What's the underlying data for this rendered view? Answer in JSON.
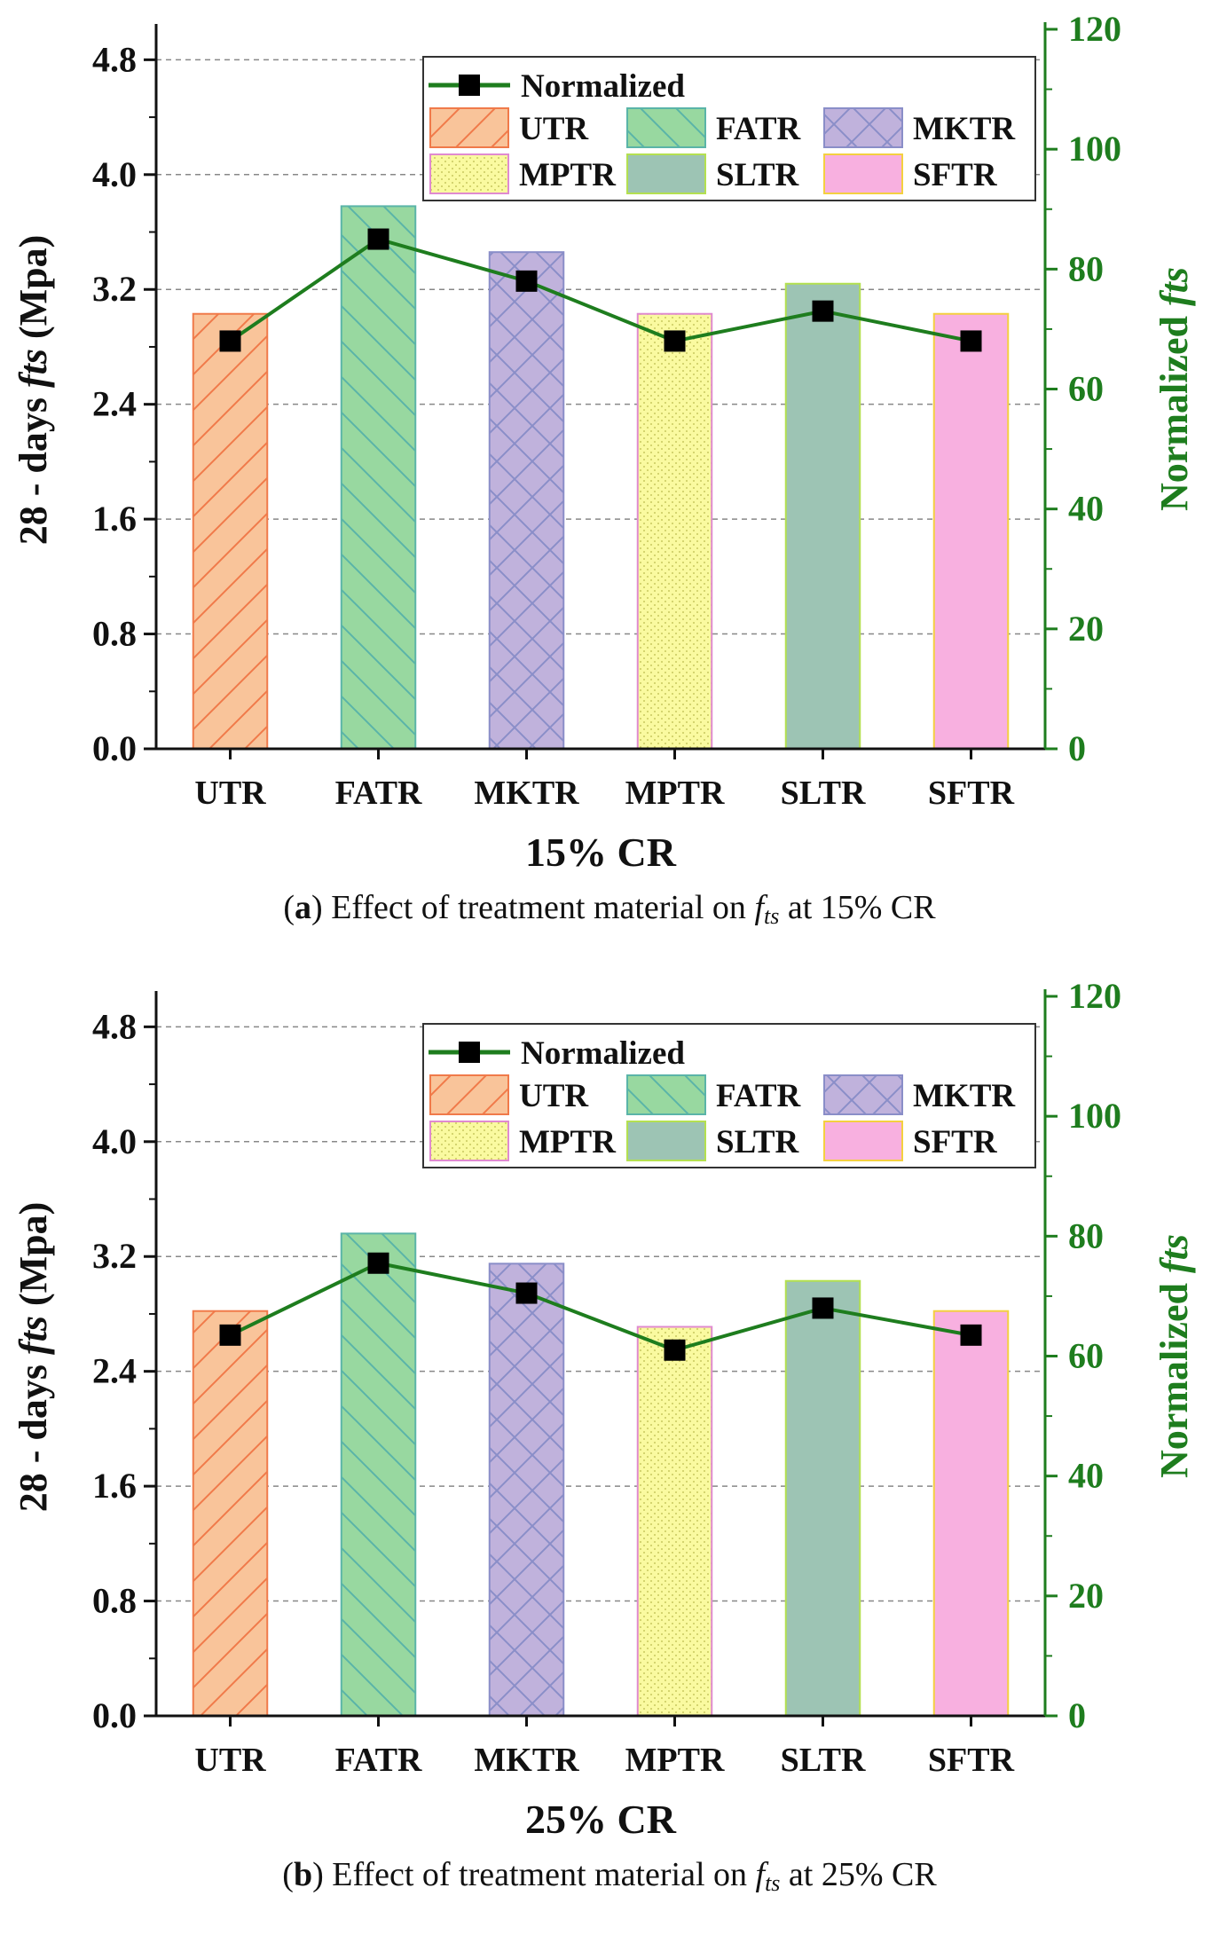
{
  "chart_data": [
    {
      "type": "bar",
      "panel": "a",
      "categories": [
        "UTR",
        "FATR",
        "MKTR",
        "MPTR",
        "SLTR",
        "SFTR"
      ],
      "series": [
        {
          "name": "28 - days fts (Mpa)",
          "axis": "left",
          "values": [
            3.03,
            3.78,
            3.46,
            3.03,
            3.24,
            3.03
          ]
        },
        {
          "name": "Normalized",
          "axis": "right",
          "type": "line",
          "values": [
            68,
            85,
            78,
            68,
            73,
            68
          ]
        }
      ],
      "xlabel": "15% CR",
      "ylabel_prefix": "28 - days ",
      "ylabel_ital": "fts",
      "ylabel_suffix": " (Mpa)",
      "y2label_prefix": "Normalized  ",
      "y2label_ital": "fts",
      "ylim": [
        0,
        5.0
      ],
      "y2lim": [
        0,
        120
      ],
      "yticks": [
        "0.0",
        "0.8",
        "1.6",
        "2.4",
        "3.2",
        "4.0",
        "4.8"
      ],
      "y2ticks": [
        "0",
        "20",
        "40",
        "60",
        "80",
        "100",
        "120"
      ],
      "grid": true,
      "legend_position": "top-right",
      "caption": {
        "label": "a",
        "text_before": "Effect of treatment material on ",
        "symbol": "f",
        "subscript": "ts",
        "text_after": " at 15% CR"
      }
    },
    {
      "type": "bar",
      "panel": "b",
      "categories": [
        "UTR",
        "FATR",
        "MKTR",
        "MPTR",
        "SLTR",
        "SFTR"
      ],
      "series": [
        {
          "name": "28 - days fts (Mpa)",
          "axis": "left",
          "values": [
            2.82,
            3.36,
            3.15,
            2.71,
            3.03,
            2.82
          ]
        },
        {
          "name": "Normalized",
          "axis": "right",
          "type": "line",
          "values": [
            63.5,
            75.5,
            70.5,
            61,
            68,
            63.5
          ]
        }
      ],
      "xlabel": "25% CR",
      "ylabel_prefix": "28 - days ",
      "ylabel_ital": "fts",
      "ylabel_suffix": " (Mpa)",
      "y2label_prefix": "Normalized  ",
      "y2label_ital": "fts",
      "ylim": [
        0,
        5.0
      ],
      "y2lim": [
        0,
        120
      ],
      "yticks": [
        "0.0",
        "0.8",
        "1.6",
        "2.4",
        "3.2",
        "4.0",
        "4.8"
      ],
      "y2ticks": [
        "0",
        "20",
        "40",
        "60",
        "80",
        "100",
        "120"
      ],
      "grid": true,
      "legend_position": "top-right",
      "caption": {
        "label": "b",
        "text_before": "Effect of treatment material on ",
        "symbol": "f",
        "subscript": "ts",
        "text_after": " at 25% CR"
      }
    }
  ],
  "legend": {
    "line_label": "Normalized",
    "items": [
      {
        "name": "UTR",
        "fill": "#f9c49a",
        "stroke": "#f07a4a",
        "pattern": "diag-up"
      },
      {
        "name": "FATR",
        "fill": "#98d8a0",
        "stroke": "#5ab4a8",
        "pattern": "diag-down"
      },
      {
        "name": "MKTR",
        "fill": "#c0b2dc",
        "stroke": "#8a8ec8",
        "pattern": "cross"
      },
      {
        "name": "MPTR",
        "fill": "#fafaa0",
        "stroke": "#e08ad0",
        "pattern": "dots"
      },
      {
        "name": "SLTR",
        "fill": "#9dc4b4",
        "stroke": "#b4e050",
        "pattern": "none"
      },
      {
        "name": "SFTR",
        "fill": "#f8b0e0",
        "stroke": "#f4d040",
        "pattern": "none"
      }
    ]
  },
  "colors": {
    "line": "#1e7d1e",
    "marker": "#000000",
    "axis": "#111111",
    "right_axis": "#1e7d1e",
    "grid": "#888888"
  }
}
